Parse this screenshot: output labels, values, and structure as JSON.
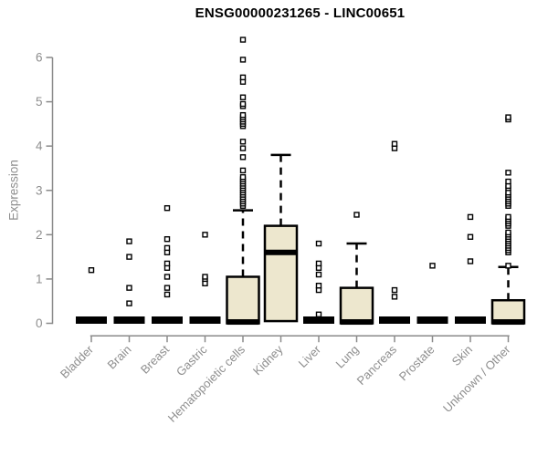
{
  "chart_data": {
    "type": "boxplot",
    "title": "ENSG00000231265 - LINC00651",
    "ylabel": "Expression",
    "xlabel": "",
    "ylim": [
      0,
      6.5
    ],
    "yticks": [
      0,
      1,
      2,
      3,
      4,
      5,
      6
    ],
    "grid": false,
    "legend": "none",
    "box_fill": "#EDE7CE",
    "box_stroke": "#000000",
    "axis_color": "#8a8a8a",
    "text_color": "#8e8e8e",
    "title_color": "#000000",
    "categories": [
      "Bladder",
      "Brain",
      "Breast",
      "Gastric",
      "Hematopoietic cells",
      "Kidney",
      "Liver",
      "Lung",
      "Pancreas",
      "Prostate",
      "Skin",
      "Unknown / Other"
    ],
    "series": [
      {
        "category": "Bladder",
        "q1": 0,
        "median": 0,
        "q3": 0,
        "whisker_low": 0,
        "whisker_high": 0,
        "outliers": [
          1.2
        ]
      },
      {
        "category": "Brain",
        "q1": 0,
        "median": 0,
        "q3": 0,
        "whisker_low": 0,
        "whisker_high": 0,
        "outliers": [
          0.45,
          0.8,
          1.5,
          1.85
        ]
      },
      {
        "category": "Breast",
        "q1": 0,
        "median": 0,
        "q3": 0,
        "whisker_low": 0,
        "whisker_high": 0,
        "outliers": [
          0.65,
          0.8,
          1.05,
          1.25,
          1.35,
          1.6,
          1.7,
          1.9,
          2.6
        ]
      },
      {
        "category": "Gastric",
        "q1": 0,
        "median": 0,
        "q3": 0,
        "whisker_low": 0,
        "whisker_high": 0,
        "outliers": [
          0.9,
          1.0,
          1.05,
          2.0
        ]
      },
      {
        "category": "Hematopoietic cells",
        "q1": 0,
        "median": 0.03,
        "q3": 1.05,
        "whisker_low": 0,
        "whisker_high": 2.55,
        "outliers": [
          2.65,
          2.7,
          2.75,
          2.8,
          2.85,
          2.9,
          2.95,
          3.0,
          3.05,
          3.1,
          3.15,
          3.2,
          3.25,
          3.3,
          3.45,
          3.75,
          3.95,
          4.1,
          4.45,
          4.5,
          4.55,
          4.6,
          4.65,
          4.7,
          4.9,
          4.95,
          5.1,
          5.45,
          5.55,
          5.95,
          6.4
        ]
      },
      {
        "category": "Kidney",
        "q1": 0.05,
        "median": 1.6,
        "q3": 2.2,
        "whisker_low": 0.05,
        "whisker_high": 3.8,
        "outliers": []
      },
      {
        "category": "Liver",
        "q1": 0,
        "median": 0,
        "q3": 0,
        "whisker_low": 0,
        "whisker_high": 0,
        "outliers": [
          0.2,
          0.75,
          0.85,
          1.1,
          1.25,
          1.35,
          1.8
        ]
      },
      {
        "category": "Lung",
        "q1": 0,
        "median": 0.03,
        "q3": 0.8,
        "whisker_low": 0,
        "whisker_high": 1.8,
        "outliers": [
          2.45
        ]
      },
      {
        "category": "Pancreas",
        "q1": 0,
        "median": 0,
        "q3": 0,
        "whisker_low": 0,
        "whisker_high": 0,
        "outliers": [
          0.6,
          0.75,
          3.95,
          4.05
        ]
      },
      {
        "category": "Prostate",
        "q1": 0,
        "median": 0,
        "q3": 0,
        "whisker_low": 0,
        "whisker_high": 0,
        "outliers": [
          1.3
        ]
      },
      {
        "category": "Skin",
        "q1": 0,
        "median": 0,
        "q3": 0,
        "whisker_low": 0,
        "whisker_high": 0,
        "outliers": [
          1.4,
          1.95,
          2.4
        ]
      },
      {
        "category": "Unknown / Other",
        "q1": 0,
        "median": 0.03,
        "q3": 0.52,
        "whisker_low": 0,
        "whisker_high": 1.27,
        "outliers": [
          1.3,
          1.6,
          1.65,
          1.7,
          1.75,
          1.8,
          1.85,
          1.9,
          1.95,
          2.0,
          2.05,
          2.2,
          2.25,
          2.3,
          2.35,
          2.4,
          2.65,
          2.7,
          2.75,
          2.8,
          2.85,
          2.9,
          2.95,
          3.05,
          3.1,
          3.2,
          3.4,
          4.6,
          4.65
        ]
      }
    ]
  }
}
